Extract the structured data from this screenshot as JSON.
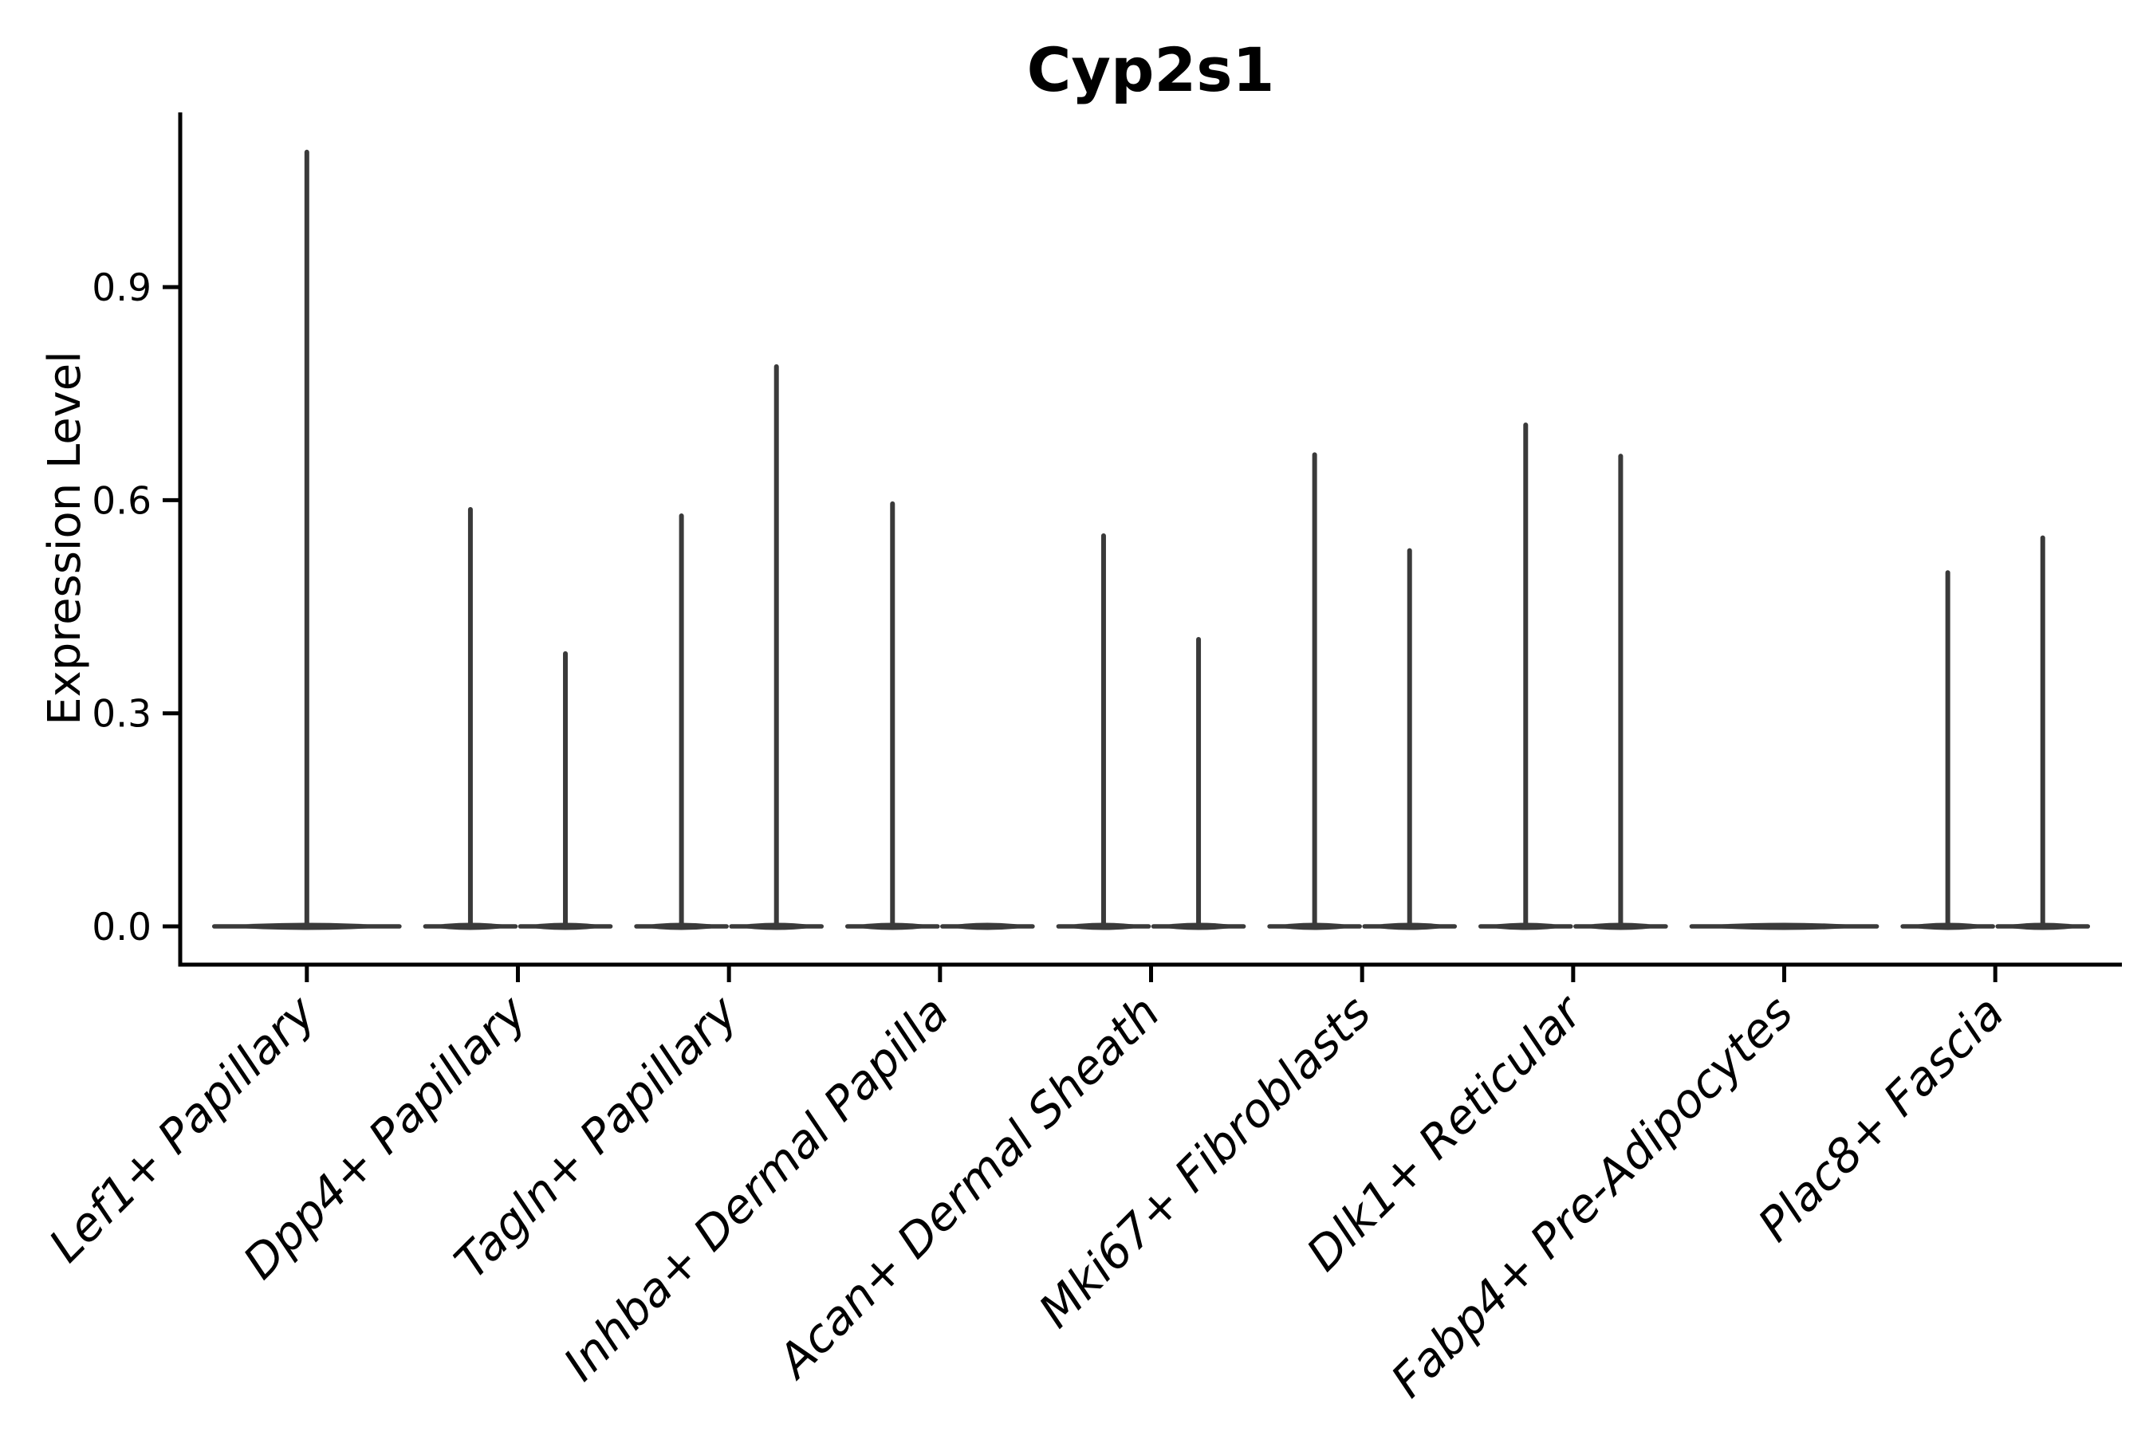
{
  "figure": {
    "background": "#ffffff"
  },
  "chart_data": {
    "type": "violin",
    "title": "Cyp2s1",
    "xlabel": "",
    "ylabel": "Expression Level",
    "grid": false,
    "legend": "none",
    "x_tick_rotation": 45,
    "ylim": [
      -0.054,
      1.146
    ],
    "y_ticks": [
      "0.0",
      "0.3",
      "0.6",
      "0.9"
    ],
    "y_tick_values": [
      0.0,
      0.3,
      0.6,
      0.9
    ],
    "categories": [
      "Lef1+ Papillary",
      "Dpp4+ Papillary",
      "Tagln+ Papillary",
      "Inhba+ Dermal Papilla",
      "Acan+ Dermal Sheath",
      "Mki67+ Fibroblasts",
      "Dlk1+ Reticular",
      "Fabp4+ Pre-Adipocytes",
      "Plac8+ Fascia"
    ],
    "violins": [
      {
        "category": "Lef1+ Papillary",
        "groups": [
          {
            "span": "full",
            "max": 1.09
          }
        ]
      },
      {
        "category": "Dpp4+ Papillary",
        "groups": [
          {
            "span": "left",
            "max": 0.587
          },
          {
            "span": "right",
            "max": 0.384
          }
        ]
      },
      {
        "category": "Tagln+ Papillary",
        "groups": [
          {
            "span": "left",
            "max": 0.578
          },
          {
            "span": "right",
            "max": 0.788
          }
        ]
      },
      {
        "category": "Inhba+ Dermal Papilla",
        "groups": [
          {
            "span": "left",
            "max": 0.595
          },
          {
            "span": "right",
            "max": 0
          }
        ]
      },
      {
        "category": "Acan+ Dermal Sheath",
        "groups": [
          {
            "span": "left",
            "max": 0.55
          },
          {
            "span": "right",
            "max": 0.404
          }
        ]
      },
      {
        "category": "Mki67+ Fibroblasts",
        "groups": [
          {
            "span": "left",
            "max": 0.664
          },
          {
            "span": "right",
            "max": 0.529
          }
        ]
      },
      {
        "category": "Dlk1+ Reticular",
        "groups": [
          {
            "span": "left",
            "max": 0.706
          },
          {
            "span": "right",
            "max": 0.662
          }
        ]
      },
      {
        "category": "Fabp4+ Pre-Adipocytes",
        "groups": [
          {
            "span": "full",
            "max": 0
          }
        ]
      },
      {
        "category": "Plac8+ Fascia",
        "groups": [
          {
            "span": "left",
            "max": 0.498
          },
          {
            "span": "right",
            "max": 0.547
          }
        ]
      }
    ],
    "colors": {
      "violin": "#3a3a3a",
      "axis": "#000000",
      "text": "#000000",
      "background": "#ffffff"
    }
  }
}
